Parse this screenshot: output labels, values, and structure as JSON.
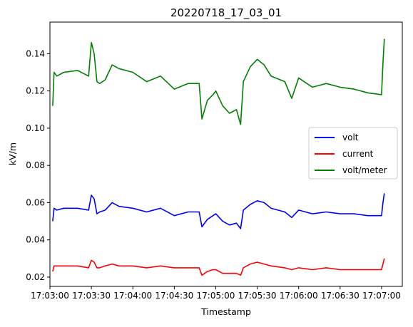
{
  "chart_data": {
    "type": "line",
    "title": "20220718_17_03_01",
    "xlabel": "Timestamp",
    "ylabel": "kV/m",
    "xlim": [
      "17:03:00",
      "17:07:15"
    ],
    "ylim": [
      0.015,
      0.157
    ],
    "x_ticks": [
      "17:03:00",
      "17:03:30",
      "17:04:00",
      "17:04:30",
      "17:05:00",
      "17:05:30",
      "17:06:00",
      "17:06:30",
      "17:07:00"
    ],
    "y_ticks": [
      0.02,
      0.04,
      0.06,
      0.08,
      0.1,
      0.12,
      0.14
    ],
    "grid": false,
    "legend": "center-right",
    "series": [
      {
        "name": "volt",
        "color": "#0000ff",
        "x": [
          "17:03:02",
          "17:03:03",
          "17:03:05",
          "17:03:10",
          "17:03:20",
          "17:03:28",
          "17:03:30",
          "17:03:32",
          "17:03:34",
          "17:03:36",
          "17:03:40",
          "17:03:45",
          "17:03:50",
          "17:04:00",
          "17:04:10",
          "17:04:20",
          "17:04:30",
          "17:04:40",
          "17:04:48",
          "17:04:50",
          "17:04:54",
          "17:04:58",
          "17:05:00",
          "17:05:05",
          "17:05:10",
          "17:05:15",
          "17:05:18",
          "17:05:20",
          "17:05:25",
          "17:05:30",
          "17:05:35",
          "17:05:40",
          "17:05:50",
          "17:05:55",
          "17:06:00",
          "17:06:10",
          "17:06:20",
          "17:06:30",
          "17:06:40",
          "17:06:50",
          "17:07:00",
          "17:07:01",
          "17:07:02"
        ],
        "values": [
          0.05,
          0.057,
          0.056,
          0.057,
          0.057,
          0.056,
          0.064,
          0.062,
          0.054,
          0.055,
          0.056,
          0.06,
          0.058,
          0.057,
          0.055,
          0.057,
          0.053,
          0.055,
          0.055,
          0.047,
          0.051,
          0.053,
          0.054,
          0.05,
          0.048,
          0.049,
          0.046,
          0.056,
          0.059,
          0.061,
          0.06,
          0.057,
          0.055,
          0.052,
          0.056,
          0.054,
          0.055,
          0.054,
          0.054,
          0.053,
          0.053,
          0.06,
          0.065
        ]
      },
      {
        "name": "current",
        "color": "#ff0000",
        "x": [
          "17:03:02",
          "17:03:03",
          "17:03:05",
          "17:03:10",
          "17:03:20",
          "17:03:28",
          "17:03:30",
          "17:03:32",
          "17:03:34",
          "17:03:36",
          "17:03:40",
          "17:03:45",
          "17:03:50",
          "17:04:00",
          "17:04:10",
          "17:04:20",
          "17:04:30",
          "17:04:40",
          "17:04:48",
          "17:04:50",
          "17:04:54",
          "17:04:58",
          "17:05:00",
          "17:05:05",
          "17:05:10",
          "17:05:15",
          "17:05:18",
          "17:05:20",
          "17:05:25",
          "17:05:30",
          "17:05:35",
          "17:05:40",
          "17:05:50",
          "17:05:55",
          "17:06:00",
          "17:06:10",
          "17:06:20",
          "17:06:30",
          "17:06:40",
          "17:06:50",
          "17:07:00",
          "17:07:01",
          "17:07:02"
        ],
        "values": [
          0.023,
          0.026,
          0.026,
          0.026,
          0.026,
          0.025,
          0.029,
          0.028,
          0.025,
          0.025,
          0.026,
          0.027,
          0.026,
          0.026,
          0.025,
          0.026,
          0.025,
          0.025,
          0.025,
          0.021,
          0.023,
          0.024,
          0.024,
          0.022,
          0.022,
          0.022,
          0.021,
          0.025,
          0.027,
          0.028,
          0.027,
          0.026,
          0.025,
          0.024,
          0.025,
          0.024,
          0.025,
          0.024,
          0.024,
          0.024,
          0.024,
          0.027,
          0.03
        ]
      },
      {
        "name": "volt/meter",
        "color": "#008000",
        "x": [
          "17:03:02",
          "17:03:03",
          "17:03:05",
          "17:03:10",
          "17:03:20",
          "17:03:28",
          "17:03:30",
          "17:03:32",
          "17:03:34",
          "17:03:36",
          "17:03:40",
          "17:03:45",
          "17:03:50",
          "17:04:00",
          "17:04:10",
          "17:04:20",
          "17:04:30",
          "17:04:40",
          "17:04:48",
          "17:04:50",
          "17:04:54",
          "17:04:58",
          "17:05:00",
          "17:05:05",
          "17:05:10",
          "17:05:15",
          "17:05:18",
          "17:05:20",
          "17:05:25",
          "17:05:30",
          "17:05:35",
          "17:05:40",
          "17:05:50",
          "17:05:55",
          "17:06:00",
          "17:06:10",
          "17:06:20",
          "17:06:30",
          "17:06:40",
          "17:06:50",
          "17:07:00",
          "17:07:01",
          "17:07:02"
        ],
        "values": [
          0.112,
          0.13,
          0.128,
          0.13,
          0.131,
          0.128,
          0.146,
          0.14,
          0.125,
          0.124,
          0.126,
          0.134,
          0.132,
          0.13,
          0.125,
          0.128,
          0.121,
          0.124,
          0.124,
          0.105,
          0.115,
          0.118,
          0.12,
          0.112,
          0.108,
          0.11,
          0.102,
          0.125,
          0.133,
          0.137,
          0.134,
          0.128,
          0.125,
          0.116,
          0.127,
          0.122,
          0.124,
          0.122,
          0.121,
          0.119,
          0.118,
          0.135,
          0.148
        ]
      }
    ]
  }
}
